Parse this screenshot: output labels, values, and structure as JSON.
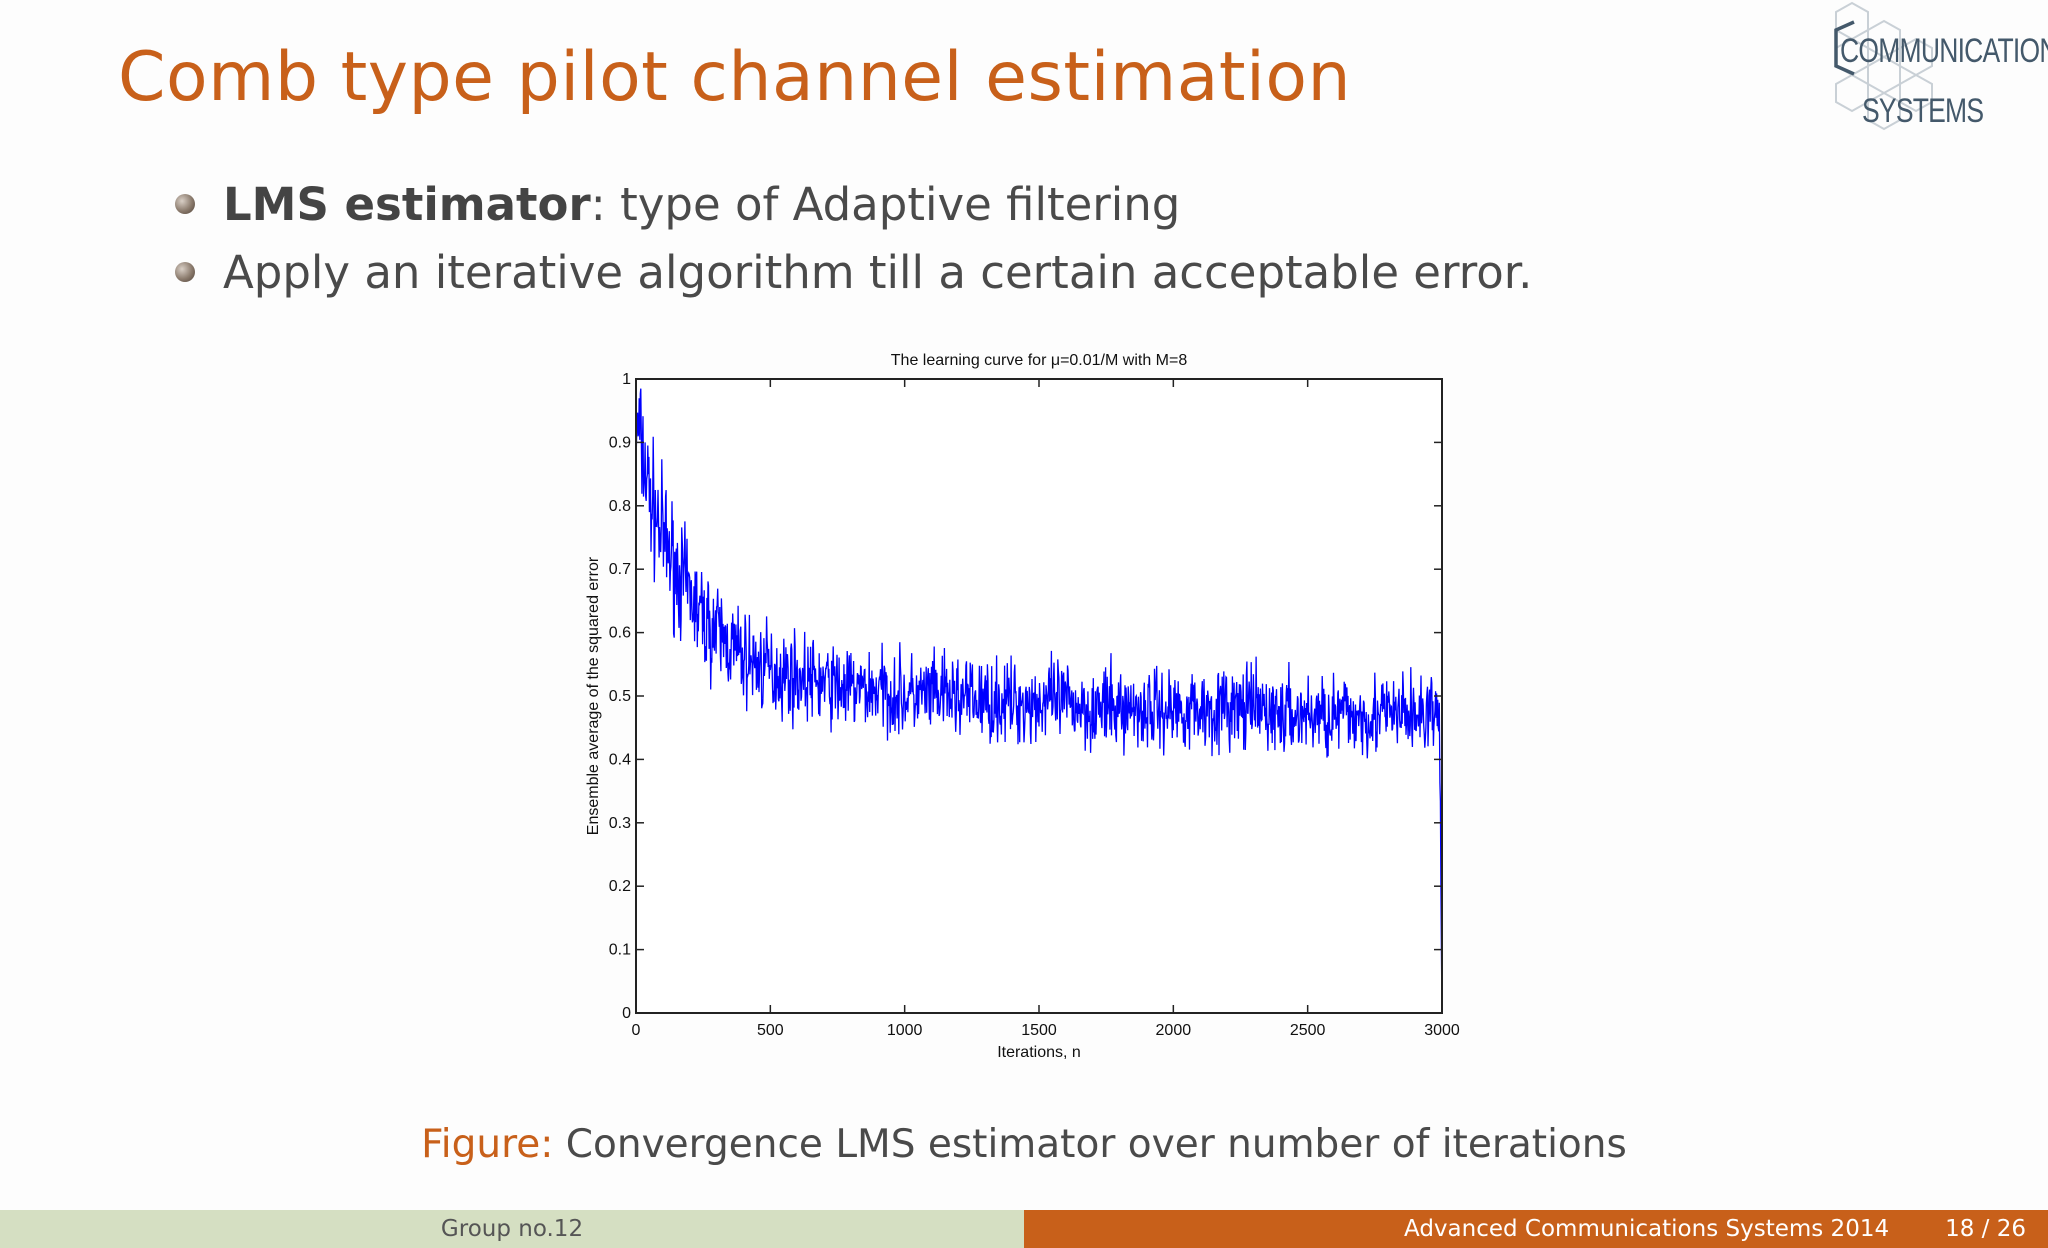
{
  "slide": {
    "title": "Comb type pilot channel estimation",
    "bullets": [
      {
        "strong": "LMS estimator",
        "text": ": type of Adaptive filtering"
      },
      {
        "strong": "",
        "text": "Apply an iterative algorithm till a certain acceptable error."
      }
    ],
    "caption_label": "Figure:",
    "caption_text": " Convergence LMS estimator over number of iterations"
  },
  "logo": {
    "line1": "COMMUNICATION",
    "line2": "SYSTEMS"
  },
  "footer": {
    "group": "Group no.12",
    "conference": "Advanced Communications Systems 2014",
    "page": "18 / 26"
  },
  "colors": {
    "accent": "#c8601a",
    "footer_left": "#d5dfc2",
    "series": "#0000ff"
  },
  "chart_data": {
    "type": "line",
    "title": "The learning curve for μ=0.01/M with M=8",
    "xlabel": "Iterations, n",
    "ylabel": "Ensemble average of the squared error",
    "xlim": [
      0,
      3000
    ],
    "ylim": [
      0,
      1
    ],
    "xticks": [
      "0",
      "500",
      "1000",
      "1500",
      "2000",
      "2500",
      "3000"
    ],
    "yticks": [
      "0",
      "0.1",
      "0.2",
      "0.3",
      "0.4",
      "0.5",
      "0.6",
      "0.7",
      "0.8",
      "0.9",
      "1"
    ],
    "grid": false,
    "series": [
      {
        "x": [
          0,
          10,
          25,
          50,
          75,
          100,
          150,
          200,
          250,
          300,
          350,
          400,
          450,
          500,
          600,
          700,
          800,
          900,
          1000,
          1100,
          1200,
          1300,
          1400,
          1500,
          1600,
          1700,
          1800,
          1900,
          2000,
          2100,
          2200,
          2300,
          2400,
          2500,
          2600,
          2700,
          2800,
          2900,
          2990,
          3000
        ],
        "y": [
          0.9,
          0.92,
          0.88,
          0.82,
          0.78,
          0.75,
          0.7,
          0.66,
          0.62,
          0.6,
          0.58,
          0.56,
          0.55,
          0.54,
          0.53,
          0.52,
          0.51,
          0.51,
          0.5,
          0.5,
          0.5,
          0.49,
          0.49,
          0.49,
          0.49,
          0.48,
          0.48,
          0.48,
          0.48,
          0.48,
          0.48,
          0.48,
          0.47,
          0.47,
          0.47,
          0.47,
          0.47,
          0.47,
          0.47,
          0.0
        ],
        "noise": [
          0.06,
          0.06,
          0.06,
          0.06,
          0.06,
          0.06,
          0.055,
          0.05,
          0.05,
          0.05,
          0.045,
          0.045,
          0.045,
          0.045,
          0.04,
          0.04,
          0.04,
          0.04,
          0.04,
          0.04,
          0.04,
          0.04,
          0.04,
          0.04,
          0.04,
          0.04,
          0.04,
          0.04,
          0.04,
          0.04,
          0.04,
          0.04,
          0.04,
          0.04,
          0.04,
          0.04,
          0.04,
          0.04,
          0.04,
          0.0
        ]
      }
    ]
  }
}
